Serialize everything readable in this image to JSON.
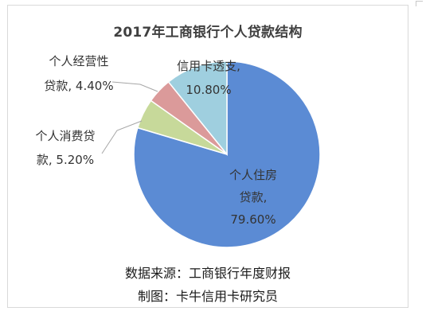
{
  "chart_data": {
    "type": "pie",
    "title": "2017年工商银行个人贷款结构",
    "slices": [
      {
        "name": "个人住房贷款",
        "value": 79.6,
        "color": "#5b8bd4",
        "label_lines": [
          "个人住房",
          "贷款,",
          "79.60%"
        ]
      },
      {
        "name": "个人消费贷款",
        "value": 5.2,
        "color": "#c7d99a",
        "label_lines": [
          "个人消费贷",
          "款, 5.20%"
        ]
      },
      {
        "name": "个人经营性贷款",
        "value": 4.4,
        "color": "#db9a9a",
        "label_lines": [
          "个人经营性",
          "贷款, 4.40%"
        ]
      },
      {
        "name": "信用卡透支",
        "value": 10.8,
        "color": "#9fcfdf",
        "label_lines": [
          "信用卡透支,",
          "10.80%"
        ]
      }
    ],
    "source": "数据来源：工商银行年度财报",
    "credit": "制图：卡牛信用卡研究员"
  }
}
